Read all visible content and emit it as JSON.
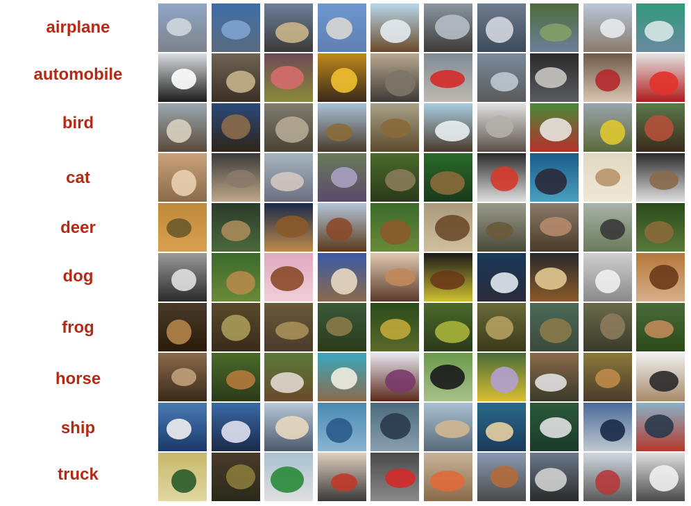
{
  "label_color": "#b52a15",
  "rows": [
    {
      "label": "airplane",
      "tones": [
        [
          "#8fa7c7",
          "#cfd6df",
          "#7d828a"
        ],
        [
          "#3d6ea8",
          "#7fa3cf",
          "#5a6b7f"
        ],
        [
          "#6d7f98",
          "#c9b58a",
          "#3a3a3a"
        ],
        [
          "#6d98cf",
          "#d8d6d2",
          "#5f7fb3"
        ],
        [
          "#b8d8ea",
          "#e3ebef",
          "#6b4a2a"
        ],
        [
          "#8b97a3",
          "#b5bdc5",
          "#3e3a36"
        ],
        [
          "#6e7c8e",
          "#d1d6de",
          "#3d4a5b"
        ],
        [
          "#4e6b3a",
          "#83a067",
          "#6d7f9a"
        ],
        [
          "#b8c7d9",
          "#e7eaee",
          "#8a7a6a"
        ],
        [
          "#2f9a7a",
          "#d7e7e6",
          "#6a8aa0"
        ]
      ]
    },
    {
      "label": "automobile",
      "tones": [
        [
          "#d9dce0",
          "#ffffff",
          "#1d1d1d"
        ],
        [
          "#6e6354",
          "#c4b28a",
          "#3b3024"
        ],
        [
          "#6d4a54",
          "#d46b6b",
          "#8a8a3a"
        ],
        [
          "#c08a1a",
          "#f0c030",
          "#3a2a1a"
        ],
        [
          "#b8a890",
          "#7c7468",
          "#3e3a36"
        ],
        [
          "#7e8c96",
          "#d42a2a",
          "#bfb9b0"
        ],
        [
          "#7a8b9b",
          "#bec8d0",
          "#5a5a5a"
        ],
        [
          "#2a2a2a",
          "#c9c6c3",
          "#5a5c60"
        ],
        [
          "#6e5a4a",
          "#b4292a",
          "#d9c4b0"
        ],
        [
          "#e4e4e4",
          "#e2322c",
          "#b01c1c"
        ]
      ]
    },
    {
      "label": "bird",
      "tones": [
        [
          "#9aa8b0",
          "#d8d0c0",
          "#5a4a3a"
        ],
        [
          "#2a4a7a",
          "#8b6b4a",
          "#2f2418"
        ],
        [
          "#807d6e",
          "#b4aa95",
          "#4a4233"
        ],
        [
          "#a8c0d8",
          "#8a6b3a",
          "#4a3b2a"
        ],
        [
          "#a8a28a",
          "#8a6a3a",
          "#5c4a2a"
        ],
        [
          "#a8cce0",
          "#e8eef0",
          "#4a3a2a"
        ],
        [
          "#e0e0e0",
          "#b4b0a8",
          "#5a5048"
        ],
        [
          "#4a8a3a",
          "#e8e4e0",
          "#b4302a"
        ],
        [
          "#9aa4ac",
          "#e0c830",
          "#5a6a3a"
        ],
        [
          "#5a7a4a",
          "#b4503a",
          "#3a2a1a"
        ]
      ]
    },
    {
      "label": "cat",
      "tones": [
        [
          "#c9a27a",
          "#e9cfb0",
          "#8a6a4a"
        ],
        [
          "#3a3a3a",
          "#8a7a6a",
          "#c0a88a"
        ],
        [
          "#a8b4c0",
          "#d0c8c0",
          "#6a7080"
        ],
        [
          "#6a7a5a",
          "#a8a0c0",
          "#5a4a6a"
        ],
        [
          "#4a6a2a",
          "#8a7a5a",
          "#2a3a1a"
        ],
        [
          "#2a6a2a",
          "#8a6a3a",
          "#1a3a1a"
        ],
        [
          "#2a2a2a",
          "#d43a2a",
          "#e0e0e0"
        ],
        [
          "#1a5a8a",
          "#2a2a3a",
          "#4aa0c0"
        ],
        [
          "#e0d8c0",
          "#b8946a",
          "#f0e8d8"
        ],
        [
          "#2a2a2a",
          "#8a6a4a",
          "#e0e0e0"
        ]
      ]
    },
    {
      "label": "deer",
      "tones": [
        [
          "#c08a3a",
          "#6a5a2a",
          "#d8a050"
        ],
        [
          "#2a3a2a",
          "#a88a5a",
          "#4a6a3a"
        ],
        [
          "#1a2a4a",
          "#8a5a2a",
          "#c08a4a"
        ],
        [
          "#b4c4d8",
          "#8a4a2a",
          "#5a3a1a"
        ],
        [
          "#3a6a2a",
          "#8a5a2a",
          "#6a8a3a"
        ],
        [
          "#a89a7a",
          "#6a4a2a",
          "#d0c0a0"
        ],
        [
          "#9a9a8a",
          "#6a5a3a",
          "#4a4a3a"
        ],
        [
          "#8a7a6a",
          "#b48a6a",
          "#4a3a2a"
        ],
        [
          "#a8b4a8",
          "#3a3a3a",
          "#6a7a5a"
        ],
        [
          "#2a4a1a",
          "#8a6a3a",
          "#5a7a3a"
        ]
      ]
    },
    {
      "label": "dog",
      "tones": [
        [
          "#9a9a9a",
          "#e0e0e0",
          "#2a2a2a"
        ],
        [
          "#3a6a2a",
          "#b48a4a",
          "#6a8a3a"
        ],
        [
          "#e0a8c0",
          "#8a4a2a",
          "#f0d0d8"
        ],
        [
          "#3a5aa8",
          "#e8d8c0",
          "#8a6a4a"
        ],
        [
          "#e0c8b0",
          "#c08a5a",
          "#5a3a2a"
        ],
        [
          "#1a1a1a",
          "#6a3a1a",
          "#d0c030"
        ],
        [
          "#1a3a5a",
          "#e0e8f0",
          "#2a2a3a"
        ],
        [
          "#2a2a2a",
          "#e0c890",
          "#8a5a2a"
        ],
        [
          "#d0d0d0",
          "#f0f0f0",
          "#8a8a8a"
        ],
        [
          "#b4783a",
          "#6a3a1a",
          "#d8b08a"
        ]
      ]
    },
    {
      "label": "frog",
      "tones": [
        [
          "#4a3a2a",
          "#b4844a",
          "#2a1a0a"
        ],
        [
          "#5a4a2a",
          "#a89a5a",
          "#3a2a1a"
        ],
        [
          "#6a5a3a",
          "#a8905a",
          "#4a3a2a"
        ],
        [
          "#3a5a3a",
          "#8a7a4a",
          "#2a3a1a"
        ],
        [
          "#2a4a1a",
          "#c0a83a",
          "#5a6a2a"
        ],
        [
          "#4a6a2a",
          "#a8b43a",
          "#2a3a1a"
        ],
        [
          "#6a6a3a",
          "#b4a060",
          "#3a3a1a"
        ],
        [
          "#4a6a5a",
          "#8a7a4a",
          "#3a4a3a"
        ],
        [
          "#6a6a4a",
          "#8a7a5a",
          "#3a3a2a"
        ],
        [
          "#4a6a3a",
          "#c08a5a",
          "#2a4a1a"
        ]
      ]
    },
    {
      "label": "horse",
      "tones": [
        [
          "#8a6a4a",
          "#c0a07a",
          "#3a2a1a"
        ],
        [
          "#4a6a2a",
          "#b47a3a",
          "#2a3a1a"
        ],
        [
          "#5a7a3a",
          "#e0d8d0",
          "#6a4a2a"
        ],
        [
          "#3aa8c0",
          "#f0ece0",
          "#8a6a4a"
        ],
        [
          "#e8e8f0",
          "#7a3a6a",
          "#5a2a1a"
        ],
        [
          "#6a9a4a",
          "#1a1a1a",
          "#a8c08a"
        ],
        [
          "#4a6a3a",
          "#b4a0d0",
          "#d8c030"
        ],
        [
          "#8a6a4a",
          "#e0e0e0",
          "#3a3a2a"
        ],
        [
          "#8a7a3a",
          "#c08a4a",
          "#4a3a2a"
        ],
        [
          "#f0f0f0",
          "#2a2a2a",
          "#a88a6a"
        ]
      ]
    },
    {
      "label": "ship",
      "tones": [
        [
          "#4a7ab4",
          "#f0f0f0",
          "#1a3a6a"
        ],
        [
          "#3a6aa8",
          "#e0e0f0",
          "#1a2a4a"
        ],
        [
          "#b8c8d8",
          "#e8d8c0",
          "#4a5a6a"
        ],
        [
          "#4a8ab4",
          "#2a5a8a",
          "#8ab4d0"
        ],
        [
          "#4a6a7a",
          "#2a3a4a",
          "#8aa0b0"
        ],
        [
          "#a8c0d0",
          "#d0b890",
          "#5a6a7a"
        ],
        [
          "#2a6a8a",
          "#e8d0a0",
          "#1a3a5a"
        ],
        [
          "#2a5a3a",
          "#e0e0e0",
          "#1a3a2a"
        ],
        [
          "#4a6a9a",
          "#1a2a4a",
          "#c0c8d0"
        ],
        [
          "#8ab0c8",
          "#2a3a4a",
          "#b43a2a"
        ]
      ]
    },
    {
      "label": "truck",
      "tones": [
        [
          "#c8b86a",
          "#2a5a2a",
          "#e0d8a0"
        ],
        [
          "#4a3a2a",
          "#8a7a3a",
          "#2a2a1a"
        ],
        [
          "#a8c0d0",
          "#2a8a3a",
          "#e0e0e0"
        ],
        [
          "#e0d0c0",
          "#c03a2a",
          "#3a3a3a"
        ],
        [
          "#4a4a4a",
          "#d42a2a",
          "#8a8a8a"
        ],
        [
          "#c8b49a",
          "#e06a3a",
          "#8a6a4a"
        ],
        [
          "#8a9ab4",
          "#b46a3a",
          "#4a4a4a"
        ],
        [
          "#6a7a8a",
          "#d0d0d0",
          "#2a2a2a"
        ],
        [
          "#d0d8e0",
          "#b43a3a",
          "#5a5a5a"
        ],
        [
          "#e0e0e0",
          "#f0f0f0",
          "#4a4a4a"
        ]
      ]
    }
  ]
}
